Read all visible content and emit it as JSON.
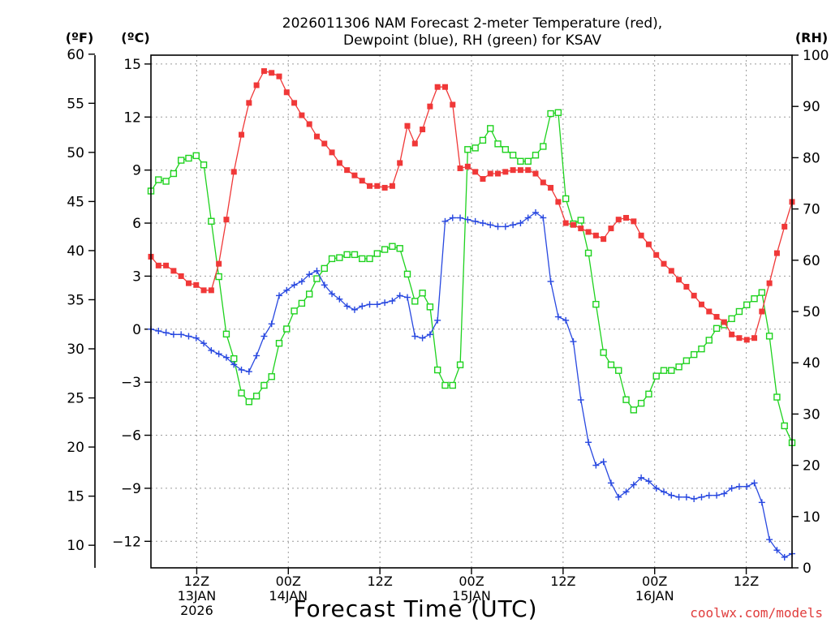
{
  "chart_data": {
    "type": "line",
    "title_line1": "2026011306 NAM Forecast 2-meter Temperature (red),",
    "title_line2": "Dewpoint (blue), RH (green) for KSAV",
    "xlabel": "Forecast Time (UTC)",
    "unit_f": "(ºF)",
    "unit_c": "(ºC)",
    "unit_rh": "(RH)",
    "watermark": "coolwx.com/models",
    "colors": {
      "temperature": "#f03838",
      "dewpoint": "#2848e0",
      "rh": "#1ed21e",
      "grid": "#9a9a9a",
      "watermark": "#e03c3c"
    },
    "x_hours_range": [
      0,
      84
    ],
    "x_ticks": [
      {
        "hour": 6,
        "line1": "12Z",
        "line2": "13JAN",
        "line3": "2026"
      },
      {
        "hour": 18,
        "line1": "00Z",
        "line2": "14JAN",
        "line3": ""
      },
      {
        "hour": 30,
        "line1": "12Z",
        "line2": "",
        "line3": ""
      },
      {
        "hour": 42,
        "line1": "00Z",
        "line2": "15JAN",
        "line3": ""
      },
      {
        "hour": 54,
        "line1": "12Z",
        "line2": "",
        "line3": ""
      },
      {
        "hour": 66,
        "line1": "00Z",
        "line2": "16JAN",
        "line3": ""
      },
      {
        "hour": 78,
        "line1": "12Z",
        "line2": "",
        "line3": ""
      }
    ],
    "y_celsius_range": [
      -13.5,
      15.5
    ],
    "y_celsius_ticks": [
      15,
      12,
      9,
      6,
      3,
      0,
      -3,
      -6,
      -9,
      -12
    ],
    "y_celsius_tick_labels": [
      "15",
      "12",
      "9",
      "6",
      "3",
      "0",
      "−3",
      "−6",
      "−9",
      "−12"
    ],
    "y_fahrenheit_ticks": [
      60,
      55,
      50,
      45,
      40,
      35,
      30,
      25,
      20,
      15,
      10
    ],
    "y_rh_range": [
      0,
      100
    ],
    "y_rh_ticks": [
      100,
      90,
      80,
      70,
      60,
      50,
      40,
      30,
      20,
      10,
      0
    ],
    "grid": true,
    "temperature_c": [
      4.1,
      3.6,
      3.6,
      3.3,
      3.0,
      2.6,
      2.5,
      2.2,
      2.2,
      3.7,
      6.2,
      8.9,
      11.0,
      12.8,
      13.8,
      14.6,
      14.5,
      14.3,
      13.4,
      12.8,
      12.1,
      11.6,
      10.9,
      10.5,
      10.0,
      9.4,
      9.0,
      8.7,
      8.4,
      8.1,
      8.1,
      8.0,
      8.1,
      9.4,
      11.5,
      10.5,
      11.3,
      12.6,
      13.7,
      13.7,
      12.7,
      9.1,
      9.2,
      8.9,
      8.5,
      8.8,
      8.8,
      8.9,
      9.0,
      9.0,
      9.0,
      8.8,
      8.3,
      8.0,
      7.2,
      6.0,
      5.9,
      5.7,
      5.5,
      5.3,
      5.1,
      5.7,
      6.2,
      6.3,
      6.1,
      5.3,
      4.8,
      4.2,
      3.7,
      3.3,
      2.8,
      2.4,
      1.9,
      1.4,
      1.0,
      0.7,
      0.4,
      -0.3,
      -0.5,
      -0.6,
      -0.5,
      1.0,
      2.6,
      4.3,
      5.8,
      7.2
    ],
    "dewpoint_c": [
      0.0,
      -0.1,
      -0.2,
      -0.3,
      -0.3,
      -0.4,
      -0.5,
      -0.8,
      -1.2,
      -1.4,
      -1.6,
      -2.0,
      -2.3,
      -2.4,
      -1.5,
      -0.4,
      0.3,
      1.9,
      2.2,
      2.5,
      2.7,
      3.1,
      3.3,
      2.5,
      2.0,
      1.7,
      1.3,
      1.1,
      1.3,
      1.4,
      1.4,
      1.5,
      1.6,
      1.9,
      1.8,
      -0.4,
      -0.5,
      -0.3,
      0.5,
      6.1,
      6.3,
      6.3,
      6.2,
      6.1,
      6.0,
      5.9,
      5.8,
      5.8,
      5.9,
      6.0,
      6.3,
      6.6,
      6.3,
      2.7,
      0.7,
      0.5,
      -0.7,
      -4.0,
      -6.4,
      -7.7,
      -7.5,
      -8.7,
      -9.5,
      -9.2,
      -8.8,
      -8.4,
      -8.6,
      -9.0,
      -9.2,
      -9.4,
      -9.5,
      -9.5,
      -9.6,
      -9.5,
      -9.4,
      -9.4,
      -9.3,
      -9.0,
      -8.9,
      -8.9,
      -8.7,
      -9.8,
      -11.9,
      -12.5,
      -12.9,
      -12.7
    ],
    "rh_pct": [
      73.5,
      75.7,
      75.4,
      76.9,
      79.5,
      79.9,
      80.4,
      78.6,
      67.6,
      56.8,
      45.6,
      40.8,
      34.1,
      32.4,
      33.5,
      35.6,
      37.3,
      43.8,
      46.6,
      50.1,
      51.6,
      53.4,
      56.4,
      58.4,
      60.3,
      60.5,
      61.1,
      61.1,
      60.3,
      60.3,
      61.3,
      62.1,
      62.7,
      62.3,
      57.3,
      52.0,
      53.6,
      50.9,
      38.6,
      35.6,
      35.6,
      39.6,
      81.6,
      81.9,
      83.4,
      85.7,
      82.7,
      81.6,
      80.5,
      79.3,
      79.3,
      80.5,
      82.2,
      88.6,
      88.8,
      72.0,
      67.1,
      67.8,
      61.4,
      51.4,
      42.0,
      39.6,
      38.5,
      32.8,
      30.8,
      32.1,
      33.9,
      37.4,
      38.5,
      38.5,
      39.2,
      40.4,
      41.6,
      42.7,
      44.4,
      46.7,
      47.4,
      48.6,
      50.0,
      51.3,
      52.5,
      53.7,
      45.2,
      33.3,
      27.7,
      24.4
    ]
  }
}
